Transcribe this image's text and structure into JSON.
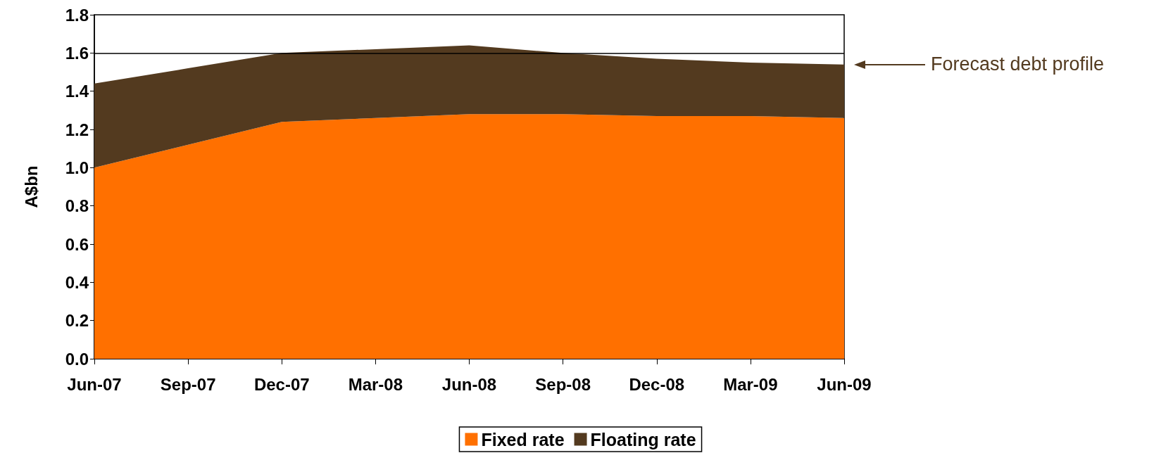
{
  "chart_data": {
    "type": "area",
    "stacked": true,
    "ylabel": "A$bn",
    "categories": [
      "Jun-07",
      "Sep-07",
      "Dec-07",
      "Mar-08",
      "Jun-08",
      "Sep-08",
      "Dec-08",
      "Mar-09",
      "Jun-09"
    ],
    "series": [
      {
        "name": "Fixed rate",
        "color": "#ff7000",
        "values": [
          1.0,
          1.12,
          1.24,
          1.26,
          1.28,
          1.28,
          1.27,
          1.27,
          1.26
        ]
      },
      {
        "name": "Floating rate",
        "color": "#533a1f",
        "values": [
          0.44,
          0.4,
          0.36,
          0.36,
          0.36,
          0.32,
          0.3,
          0.28,
          0.28
        ]
      }
    ],
    "ylim": [
      0,
      1.8
    ],
    "yticks": [
      {
        "value": 0,
        "label": "0.0"
      },
      {
        "value": 0.2,
        "label": "0.2"
      },
      {
        "value": 0.4,
        "label": "0.4"
      },
      {
        "value": 0.6,
        "label": "0.6"
      },
      {
        "value": 0.8,
        "label": "0.8"
      },
      {
        "value": 1.0,
        "label": "1.0"
      },
      {
        "value": 1.2,
        "label": "1.2"
      },
      {
        "value": 1.4,
        "label": "1.4"
      },
      {
        "value": 1.6,
        "label": "1.6"
      },
      {
        "value": 1.8,
        "label": "1.8"
      }
    ],
    "ref_lines": [
      {
        "axis": "y",
        "value": 1.6,
        "color": "#000000"
      }
    ],
    "annotations": [
      "Forecast debt profile"
    ],
    "grid": false,
    "legend": "bottom"
  }
}
